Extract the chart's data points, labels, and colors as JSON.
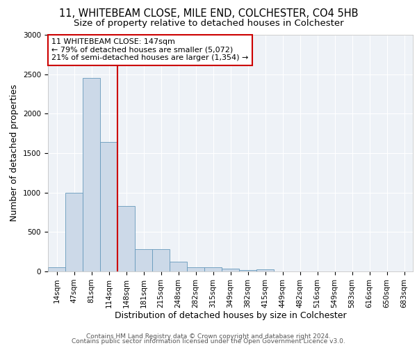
{
  "title1": "11, WHITEBEAM CLOSE, MILE END, COLCHESTER, CO4 5HB",
  "title2": "Size of property relative to detached houses in Colchester",
  "xlabel": "Distribution of detached houses by size in Colchester",
  "ylabel": "Number of detached properties",
  "bins": [
    "14sqm",
    "47sqm",
    "81sqm",
    "114sqm",
    "148sqm",
    "181sqm",
    "215sqm",
    "248sqm",
    "282sqm",
    "315sqm",
    "349sqm",
    "382sqm",
    "415sqm",
    "449sqm",
    "482sqm",
    "516sqm",
    "549sqm",
    "583sqm",
    "616sqm",
    "650sqm",
    "683sqm"
  ],
  "values": [
    50,
    1000,
    2450,
    1640,
    830,
    280,
    280,
    120,
    50,
    50,
    35,
    20,
    25,
    0,
    0,
    0,
    0,
    0,
    0,
    0,
    0
  ],
  "bar_color": "#ccd9e8",
  "bar_edge_color": "#6699bb",
  "vline_x_index": 4,
  "vline_color": "#cc0000",
  "annotation_text": "11 WHITEBEAM CLOSE: 147sqm\n← 79% of detached houses are smaller (5,072)\n21% of semi-detached houses are larger (1,354) →",
  "annotation_box_color": "#ffffff",
  "annotation_box_edge_color": "#cc0000",
  "ylim": [
    0,
    3000
  ],
  "yticks": [
    0,
    500,
    1000,
    1500,
    2000,
    2500,
    3000
  ],
  "bg_color": "#eef2f7",
  "footer1": "Contains HM Land Registry data © Crown copyright and database right 2024.",
  "footer2": "Contains public sector information licensed under the Open Government Licence v3.0.",
  "title1_fontsize": 10.5,
  "title2_fontsize": 9.5,
  "axis_label_fontsize": 9,
  "tick_fontsize": 7.5,
  "annot_fontsize": 8,
  "footer_fontsize": 6.5
}
